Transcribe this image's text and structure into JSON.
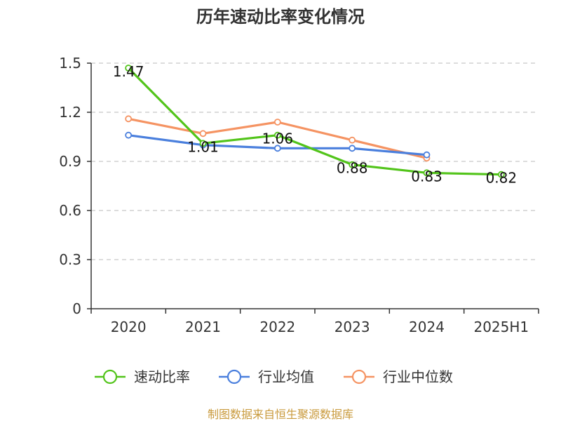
{
  "chart_data": {
    "type": "line",
    "title": "历年速动比率变化情况",
    "categories": [
      "2020",
      "2021",
      "2022",
      "2023",
      "2024",
      "2025H1"
    ],
    "ylim": [
      0,
      1.5
    ],
    "yticks": [
      "0",
      "0.3",
      "0.6",
      "0.9",
      "1.2",
      "1.5"
    ],
    "grid": true,
    "legend_position": "bottom",
    "series": [
      {
        "name": "速动比率",
        "color": "#52c41a",
        "values": [
          1.47,
          1.01,
          1.06,
          0.88,
          0.83,
          0.82
        ],
        "labels": [
          "1.47",
          "1.01",
          "1.06",
          "0.88",
          "0.83",
          "0.82"
        ]
      },
      {
        "name": "行业均值",
        "color": "#4a7fdd",
        "values": [
          1.06,
          1.0,
          0.98,
          0.98,
          0.94,
          null
        ]
      },
      {
        "name": "行业中位数",
        "color": "#f59362",
        "values": [
          1.16,
          1.07,
          1.14,
          1.03,
          0.92,
          null
        ]
      }
    ]
  },
  "source_text": "制图数据来自恒生聚源数据库"
}
